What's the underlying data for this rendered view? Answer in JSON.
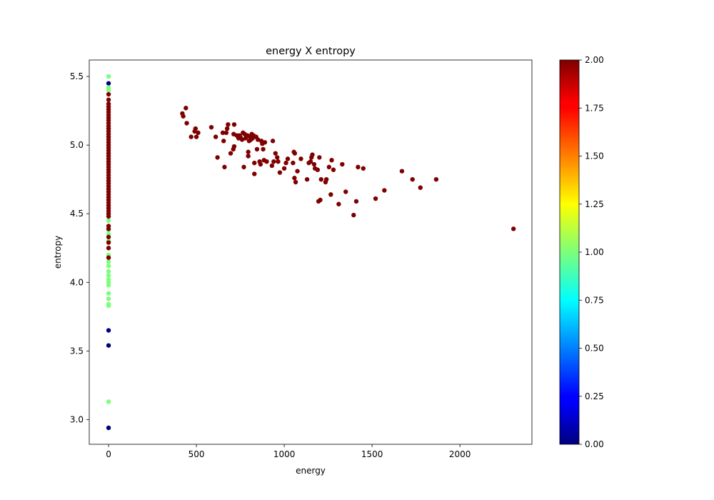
{
  "chart_data": {
    "type": "scatter",
    "title": "energy X entropy",
    "xlabel": "energy",
    "ylabel": "entropy",
    "xlim": [
      -110,
      2410
    ],
    "ylim": [
      2.82,
      5.62
    ],
    "xticks": [
      0,
      500,
      1000,
      1500,
      2000
    ],
    "yticks": [
      3.0,
      3.5,
      4.0,
      4.5,
      5.0,
      5.5
    ],
    "xtick_labels": [
      "0",
      "500",
      "1000",
      "1500",
      "2000"
    ],
    "ytick_labels": [
      "3.0",
      "3.5",
      "4.0",
      "4.5",
      "5.0",
      "5.5"
    ],
    "grid": false,
    "colorbar": {
      "colormap": "jet",
      "range": [
        0,
        2
      ],
      "ticks": [
        0.0,
        0.25,
        0.5,
        0.75,
        1.0,
        1.25,
        1.5,
        1.75,
        2.0
      ],
      "tick_labels": [
        "0.00",
        "0.25",
        "0.50",
        "0.75",
        "1.00",
        "1.25",
        "1.50",
        "1.75",
        "2.00"
      ]
    },
    "class_colors": {
      "0": "#00007f",
      "1": "#7cff79",
      "2": "#7f0000"
    },
    "points": [
      [
        0,
        5.45,
        0
      ],
      [
        0,
        3.65,
        0
      ],
      [
        0,
        3.54,
        0
      ],
      [
        0,
        2.94,
        0
      ],
      [
        0,
        5.5,
        1
      ],
      [
        0,
        5.42,
        1
      ],
      [
        0,
        5.4,
        1
      ],
      [
        0,
        4.45,
        1
      ],
      [
        0,
        4.38,
        1
      ],
      [
        0,
        4.35,
        1
      ],
      [
        0,
        4.3,
        1
      ],
      [
        0,
        4.25,
        1
      ],
      [
        0,
        4.2,
        1
      ],
      [
        0,
        4.15,
        1
      ],
      [
        0,
        4.12,
        1
      ],
      [
        0,
        4.08,
        1
      ],
      [
        0,
        4.05,
        1
      ],
      [
        0,
        4.02,
        1
      ],
      [
        0,
        4.0,
        1
      ],
      [
        0,
        3.98,
        1
      ],
      [
        0,
        3.92,
        1
      ],
      [
        0,
        3.88,
        1
      ],
      [
        0,
        3.84,
        1
      ],
      [
        0,
        3.83,
        1
      ],
      [
        0,
        3.13,
        1
      ],
      [
        0,
        5.37,
        2
      ],
      [
        0,
        5.33,
        2
      ],
      [
        0,
        5.3,
        2
      ],
      [
        0,
        5.28,
        2
      ],
      [
        0,
        5.26,
        2
      ],
      [
        0,
        5.24,
        2
      ],
      [
        0,
        5.22,
        2
      ],
      [
        0,
        5.2,
        2
      ],
      [
        0,
        5.18,
        2
      ],
      [
        0,
        5.16,
        2
      ],
      [
        0,
        5.14,
        2
      ],
      [
        0,
        5.12,
        2
      ],
      [
        0,
        5.1,
        2
      ],
      [
        0,
        5.08,
        2
      ],
      [
        0,
        5.06,
        2
      ],
      [
        0,
        5.04,
        2
      ],
      [
        0,
        5.02,
        2
      ],
      [
        0,
        5.0,
        2
      ],
      [
        0,
        4.98,
        2
      ],
      [
        0,
        4.96,
        2
      ],
      [
        0,
        4.94,
        2
      ],
      [
        0,
        4.92,
        2
      ],
      [
        0,
        4.9,
        2
      ],
      [
        0,
        4.88,
        2
      ],
      [
        0,
        4.86,
        2
      ],
      [
        0,
        4.84,
        2
      ],
      [
        0,
        4.82,
        2
      ],
      [
        0,
        4.8,
        2
      ],
      [
        0,
        4.78,
        2
      ],
      [
        0,
        4.76,
        2
      ],
      [
        0,
        4.74,
        2
      ],
      [
        0,
        4.72,
        2
      ],
      [
        0,
        4.7,
        2
      ],
      [
        0,
        4.68,
        2
      ],
      [
        0,
        4.66,
        2
      ],
      [
        0,
        4.64,
        2
      ],
      [
        0,
        4.62,
        2
      ],
      [
        0,
        4.6,
        2
      ],
      [
        0,
        4.58,
        2
      ],
      [
        0,
        4.56,
        2
      ],
      [
        0,
        4.54,
        2
      ],
      [
        0,
        4.52,
        2
      ],
      [
        0,
        4.5,
        2
      ],
      [
        0,
        4.48,
        2
      ],
      [
        0,
        4.41,
        2
      ],
      [
        0,
        4.39,
        2
      ],
      [
        0,
        4.33,
        2
      ],
      [
        0,
        4.29,
        2
      ],
      [
        0,
        4.25,
        2
      ],
      [
        0,
        4.18,
        2
      ],
      [
        420,
        5.23,
        2
      ],
      [
        425,
        5.21,
        2
      ],
      [
        440,
        5.27,
        2
      ],
      [
        445,
        5.16,
        2
      ],
      [
        470,
        5.06,
        2
      ],
      [
        490,
        5.1,
        2
      ],
      [
        495,
        5.12,
        2
      ],
      [
        500,
        5.06,
        2
      ],
      [
        510,
        5.09,
        2
      ],
      [
        585,
        5.13,
        2
      ],
      [
        610,
        5.06,
        2
      ],
      [
        620,
        4.91,
        2
      ],
      [
        650,
        5.09,
        2
      ],
      [
        655,
        5.03,
        2
      ],
      [
        660,
        4.84,
        2
      ],
      [
        670,
        5.09,
        2
      ],
      [
        675,
        5.12,
        2
      ],
      [
        680,
        5.15,
        2
      ],
      [
        695,
        4.94,
        2
      ],
      [
        710,
        4.97,
        2
      ],
      [
        712,
        5.08,
        2
      ],
      [
        715,
        4.99,
        2
      ],
      [
        715,
        5.15,
        2
      ],
      [
        730,
        5.07,
        2
      ],
      [
        740,
        5.05,
        2
      ],
      [
        745,
        5.07,
        2
      ],
      [
        750,
        5.06,
        2
      ],
      [
        760,
        5.04,
        2
      ],
      [
        765,
        5.09,
        2
      ],
      [
        770,
        4.84,
        2
      ],
      [
        775,
        5.08,
        2
      ],
      [
        780,
        5.05,
        2
      ],
      [
        790,
        5.07,
        2
      ],
      [
        795,
        4.92,
        2
      ],
      [
        795,
        4.95,
        2
      ],
      [
        800,
        5.03,
        2
      ],
      [
        805,
        5.06,
        2
      ],
      [
        810,
        5.04,
        2
      ],
      [
        815,
        5.08,
        2
      ],
      [
        820,
        5.05,
        2
      ],
      [
        825,
        5.07,
        2
      ],
      [
        830,
        4.79,
        2
      ],
      [
        830,
        4.87,
        2
      ],
      [
        840,
        5.06,
        2
      ],
      [
        845,
        4.97,
        2
      ],
      [
        850,
        5.04,
        2
      ],
      [
        860,
        4.88,
        2
      ],
      [
        865,
        4.86,
        2
      ],
      [
        870,
        5.03,
        2
      ],
      [
        875,
        5.01,
        2
      ],
      [
        880,
        4.97,
        2
      ],
      [
        885,
        4.89,
        2
      ],
      [
        890,
        5.02,
        2
      ],
      [
        900,
        4.88,
        2
      ],
      [
        930,
        4.85,
        2
      ],
      [
        935,
        5.03,
        2
      ],
      [
        940,
        4.88,
        2
      ],
      [
        950,
        4.94,
        2
      ],
      [
        960,
        4.91,
        2
      ],
      [
        965,
        4.88,
        2
      ],
      [
        975,
        4.8,
        2
      ],
      [
        1000,
        4.83,
        2
      ],
      [
        1010,
        4.87,
        2
      ],
      [
        1020,
        4.9,
        2
      ],
      [
        1050,
        4.87,
        2
      ],
      [
        1055,
        4.95,
        2
      ],
      [
        1058,
        4.76,
        2
      ],
      [
        1060,
        4.94,
        2
      ],
      [
        1065,
        4.73,
        2
      ],
      [
        1075,
        4.81,
        2
      ],
      [
        1095,
        4.9,
        2
      ],
      [
        1130,
        4.75,
        2
      ],
      [
        1140,
        4.87,
        2
      ],
      [
        1150,
        4.88,
        2
      ],
      [
        1155,
        4.91,
        2
      ],
      [
        1160,
        4.93,
        2
      ],
      [
        1170,
        4.86,
        2
      ],
      [
        1175,
        4.83,
        2
      ],
      [
        1190,
        4.82,
        2
      ],
      [
        1195,
        4.59,
        2
      ],
      [
        1200,
        4.91,
        2
      ],
      [
        1205,
        4.6,
        2
      ],
      [
        1210,
        4.75,
        2
      ],
      [
        1235,
        4.73,
        2
      ],
      [
        1240,
        4.75,
        2
      ],
      [
        1255,
        4.84,
        2
      ],
      [
        1265,
        4.64,
        2
      ],
      [
        1270,
        4.89,
        2
      ],
      [
        1280,
        4.82,
        2
      ],
      [
        1310,
        4.57,
        2
      ],
      [
        1330,
        4.86,
        2
      ],
      [
        1350,
        4.66,
        2
      ],
      [
        1395,
        4.49,
        2
      ],
      [
        1410,
        4.59,
        2
      ],
      [
        1420,
        4.84,
        2
      ],
      [
        1450,
        4.83,
        2
      ],
      [
        1520,
        4.61,
        2
      ],
      [
        1570,
        4.67,
        2
      ],
      [
        1670,
        4.81,
        2
      ],
      [
        1730,
        4.75,
        2
      ],
      [
        1775,
        4.69,
        2
      ],
      [
        1865,
        4.75,
        2
      ],
      [
        2305,
        4.39,
        2
      ]
    ]
  }
}
